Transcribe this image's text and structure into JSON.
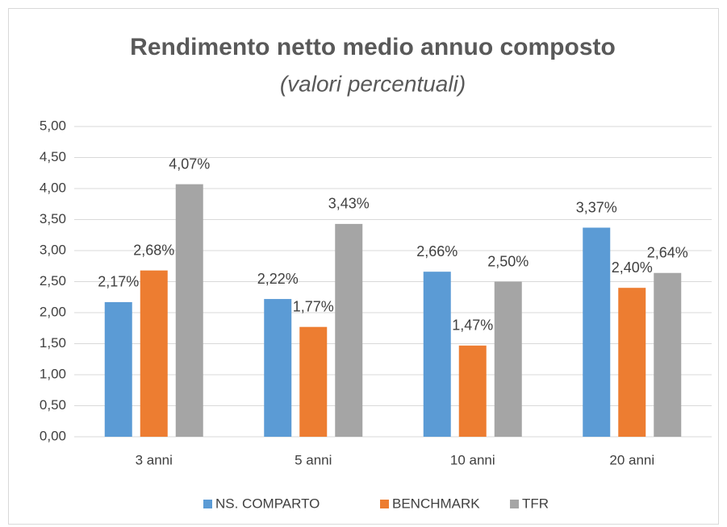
{
  "chart_data": {
    "type": "bar",
    "title": "Rendimento netto medio annuo composto",
    "subtitle": "(valori percentuali)",
    "categories": [
      "3 anni",
      "5 anni",
      "10 anni",
      "20 anni"
    ],
    "series": [
      {
        "name": "NS. COMPARTO",
        "color": "#5b9bd5",
        "values": [
          2.17,
          2.22,
          2.66,
          3.37
        ],
        "value_labels": [
          "2,17%",
          "2,22%",
          "2,66%",
          "3,37%"
        ]
      },
      {
        "name": "BENCHMARK",
        "color": "#ed7d31",
        "values": [
          2.68,
          1.77,
          1.47,
          2.4
        ],
        "value_labels": [
          "2,68%",
          "1,77%",
          "1,47%",
          "2,40%"
        ]
      },
      {
        "name": "TFR",
        "color": "#a5a5a5",
        "values": [
          4.07,
          3.43,
          2.5,
          2.64
        ],
        "value_labels": [
          "4,07%",
          "3,43%",
          "2,50%",
          "2,64%"
        ]
      }
    ],
    "ylim": [
      0,
      5
    ],
    "yticks": [
      {
        "value": 0,
        "label": "0,00"
      },
      {
        "value": 0.5,
        "label": "0,50"
      },
      {
        "value": 1,
        "label": "1,00"
      },
      {
        "value": 1.5,
        "label": "1,50"
      },
      {
        "value": 2,
        "label": "2,00"
      },
      {
        "value": 2.5,
        "label": "2,50"
      },
      {
        "value": 3,
        "label": "3,00"
      },
      {
        "value": 3.5,
        "label": "3,50"
      },
      {
        "value": 4,
        "label": "4,00"
      },
      {
        "value": 4.5,
        "label": "4,50"
      },
      {
        "value": 5,
        "label": "5,00"
      }
    ],
    "grid": true,
    "legend": "bottom"
  }
}
